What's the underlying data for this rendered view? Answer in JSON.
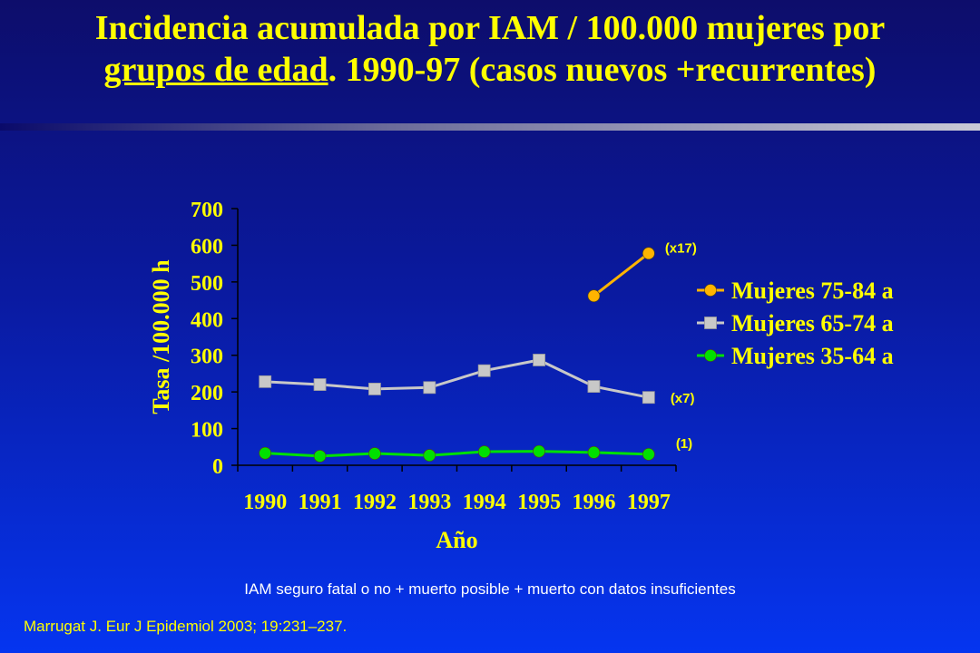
{
  "title": {
    "line1": "Incidencia acumulada por IAM / 100.000 mujeres por",
    "line2_underlined": "grupos de edad",
    "line2_rest": ". 1990-97 (casos nuevos +recurrentes)"
  },
  "note": "IAM seguro fatal o no + muerto posible + muerto con datos insuficientes",
  "citation": "Marrugat J. Eur J Epidemiol 2003; 19:231–237.",
  "colors": {
    "background_top": "#0d0d6b",
    "background_bottom": "#0535f0",
    "title": "#ffff00",
    "axis_text": "#ffff00",
    "series_75_84": "#ffb400",
    "series_65_74": "#c8c8c8",
    "series_35_64": "#00e000"
  },
  "chart_data": {
    "type": "line",
    "xlabel": "Año",
    "ylabel": "Tasa /100.000 h",
    "ylim": [
      0,
      700
    ],
    "yticks": [
      0,
      100,
      200,
      300,
      400,
      500,
      600,
      700
    ],
    "categories": [
      "1990",
      "1991",
      "1992",
      "1993",
      "1994",
      "1995",
      "1996",
      "1997"
    ],
    "legend_position": "right",
    "series": [
      {
        "name": "Mujeres 75-84 a",
        "color": "#ffb400",
        "marker": "circle",
        "values": [
          null,
          null,
          null,
          null,
          null,
          null,
          462,
          578
        ],
        "annotation": "(x17)"
      },
      {
        "name": "Mujeres 65-74 a",
        "color": "#c8c8c8",
        "marker": "square",
        "values": [
          228,
          220,
          208,
          212,
          258,
          287,
          215,
          185
        ],
        "annotation": "(x7)"
      },
      {
        "name": "Mujeres 35-64 a",
        "color": "#00e000",
        "marker": "circle",
        "values": [
          33,
          25,
          32,
          27,
          37,
          38,
          35,
          30
        ],
        "annotation": "(1)"
      }
    ]
  }
}
